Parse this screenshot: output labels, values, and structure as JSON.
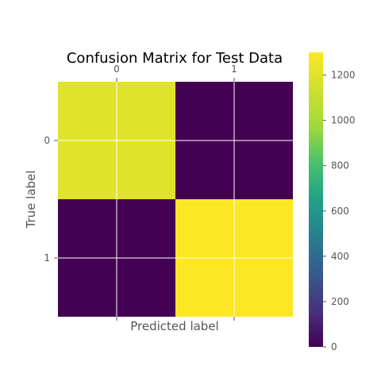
{
  "chart_data": {
    "type": "heatmap",
    "title": "Confusion Matrix for Test Data",
    "xlabel": "Predicted label",
    "ylabel": "True label",
    "x_ticks": [
      "0",
      "1"
    ],
    "y_ticks": [
      "0",
      "1"
    ],
    "matrix": [
      [
        1200,
        0
      ],
      [
        0,
        1300
      ]
    ],
    "grid": true,
    "colormap": "viridis",
    "colorbar": {
      "range": [
        0,
        1300
      ],
      "ticks": [
        "0",
        "200",
        "400",
        "600",
        "800",
        "1000",
        "1200"
      ],
      "tick_values": [
        0,
        200,
        400,
        600,
        800,
        1000,
        1200
      ]
    }
  }
}
